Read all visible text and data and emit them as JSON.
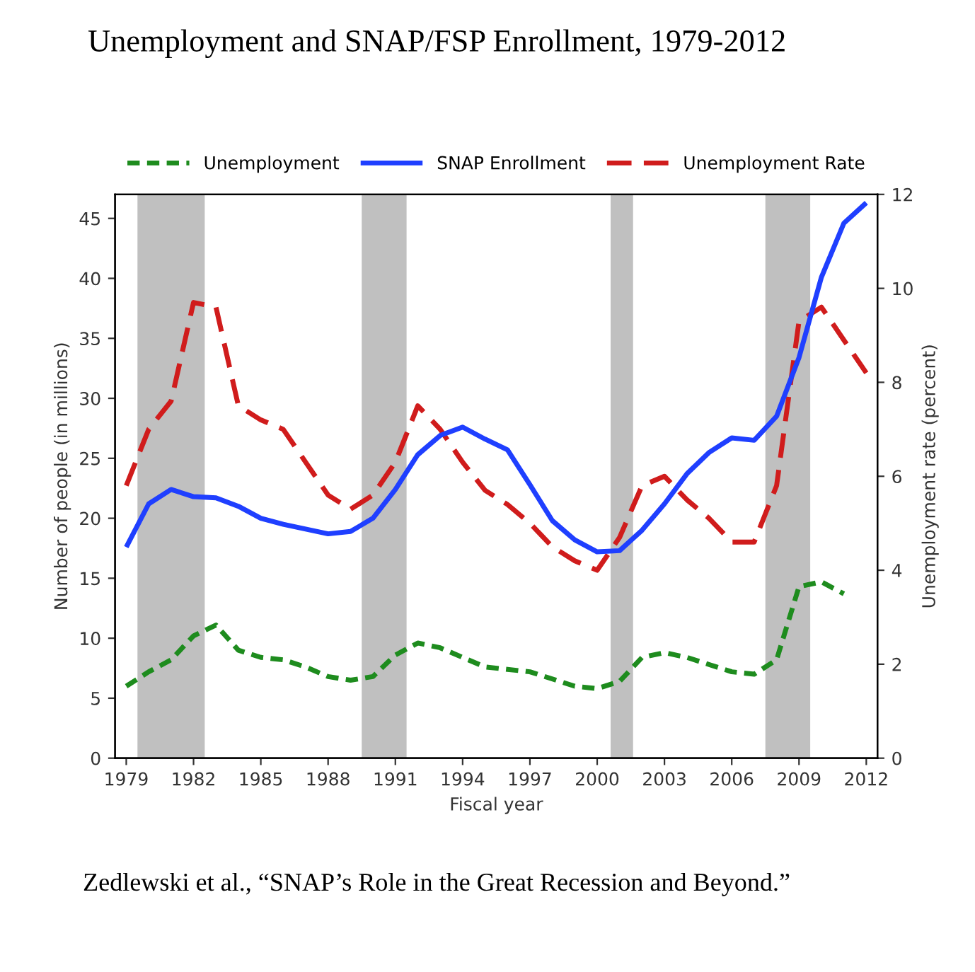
{
  "chart_data": {
    "type": "line",
    "title": "Unemployment and SNAP/FSP Enrollment, 1979-2012",
    "xlabel": "Fiscal year",
    "ylabel": "Number of people (in millions)",
    "y2label": "Unemployment rate (percent)",
    "x": [
      1979,
      1980,
      1981,
      1982,
      1983,
      1984,
      1985,
      1986,
      1987,
      1988,
      1989,
      1990,
      1991,
      1992,
      1993,
      1994,
      1995,
      1996,
      1997,
      1998,
      1999,
      2000,
      2001,
      2002,
      2003,
      2004,
      2005,
      2006,
      2007,
      2008,
      2009,
      2010,
      2011,
      2012
    ],
    "series": [
      {
        "name": "Unemployment",
        "color": "#1e8c1e",
        "line_style": "dotted",
        "values": [
          6.0,
          7.2,
          8.2,
          10.2,
          11.1,
          9.0,
          8.4,
          8.2,
          7.6,
          6.8,
          6.5,
          6.8,
          8.6,
          9.6,
          9.2,
          8.4,
          7.6,
          7.4,
          7.2,
          6.6,
          6.0,
          5.8,
          6.4,
          8.4,
          8.8,
          8.4,
          7.8,
          7.2,
          7.0,
          8.2,
          14.3,
          14.7,
          13.7,
          null
        ]
      },
      {
        "name": "SNAP Enrollment",
        "color": "#1f3fff",
        "line_style": "solid",
        "values": [
          17.6,
          21.2,
          22.4,
          21.8,
          21.7,
          21.0,
          20.0,
          19.5,
          19.1,
          18.7,
          18.9,
          20.0,
          22.4,
          25.3,
          26.9,
          27.6,
          26.6,
          25.7,
          22.8,
          19.8,
          18.2,
          17.2,
          17.3,
          19.0,
          21.2,
          23.7,
          25.5,
          26.7,
          26.5,
          28.5,
          33.4,
          40.1,
          44.6,
          46.3
        ]
      },
      {
        "name": "Unemployment Rate",
        "color": "#d01c1c",
        "line_style": "dashed",
        "axis": "y2",
        "values": [
          5.8,
          7.0,
          7.6,
          9.7,
          9.6,
          7.5,
          7.2,
          7.0,
          6.3,
          5.6,
          5.3,
          5.6,
          6.3,
          7.5,
          7.0,
          6.3,
          5.7,
          5.4,
          5.0,
          4.5,
          4.2,
          4.0,
          4.7,
          5.8,
          6.0,
          5.5,
          5.1,
          4.6,
          4.6,
          5.8,
          9.3,
          9.6,
          8.9,
          8.2
        ]
      }
    ],
    "xlim": [
      1978.5,
      2012.5
    ],
    "xticks": [
      1979,
      1982,
      1985,
      1988,
      1991,
      1994,
      1997,
      2000,
      2003,
      2006,
      2009,
      2012
    ],
    "ylim": [
      0,
      47
    ],
    "yticks": [
      0,
      5,
      10,
      15,
      20,
      25,
      30,
      35,
      40,
      45
    ],
    "y2lim": [
      0,
      12
    ],
    "y2ticks": [
      0,
      2,
      4,
      6,
      8,
      10,
      12
    ],
    "bands": [
      {
        "axis": "x",
        "from": 1979.5,
        "to": 1982.5,
        "color": "#c0c0c0"
      },
      {
        "axis": "x",
        "from": 1989.5,
        "to": 1991.5,
        "color": "#c0c0c0"
      },
      {
        "axis": "x",
        "from": 2000.6,
        "to": 2001.6,
        "color": "#c0c0c0"
      },
      {
        "axis": "x",
        "from": 2007.5,
        "to": 2009.5,
        "color": "#c0c0c0"
      }
    ],
    "annotations": [
      "Zedlewski et al., “SNAP’s Role in the Great Recession and Beyond.”"
    ],
    "legend": "top",
    "grid": false
  }
}
